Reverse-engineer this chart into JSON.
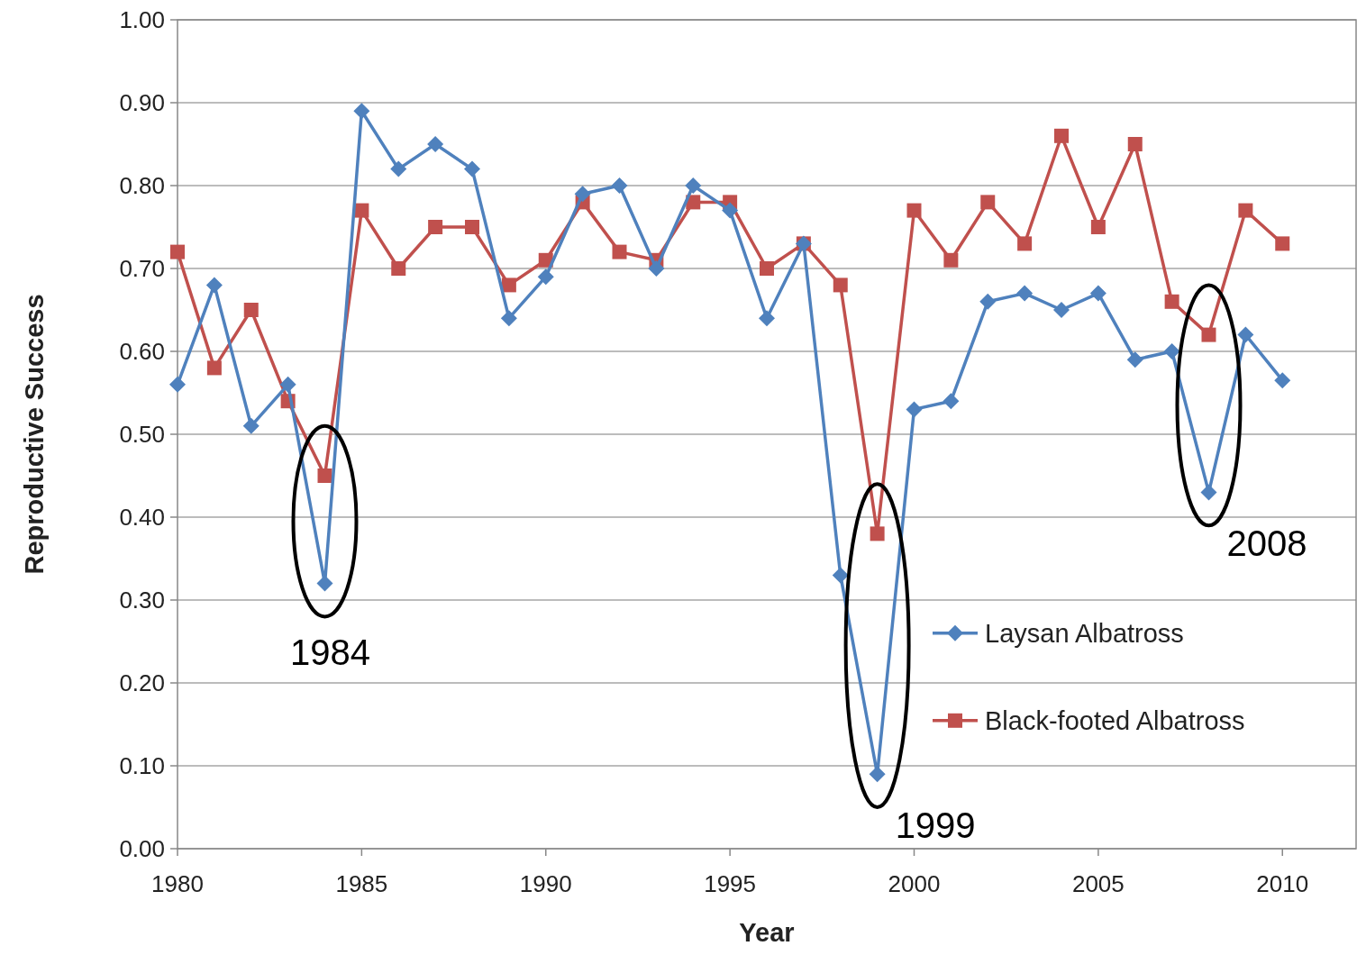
{
  "chart_data": {
    "type": "line",
    "xlabel": "Year",
    "ylabel": "Reproductive Success",
    "x": [
      1980,
      1981,
      1982,
      1983,
      1984,
      1985,
      1986,
      1987,
      1988,
      1989,
      1990,
      1991,
      1992,
      1993,
      1994,
      1995,
      1996,
      1997,
      1998,
      1999,
      2000,
      2001,
      2002,
      2003,
      2004,
      2005,
      2006,
      2007,
      2008,
      2009,
      2010
    ],
    "series": [
      {
        "name": "Laysan Albatross",
        "color": "#4f81bd",
        "marker": "diamond",
        "values": [
          0.56,
          0.68,
          0.51,
          0.56,
          0.32,
          0.89,
          0.82,
          0.85,
          0.82,
          0.64,
          0.69,
          0.79,
          0.8,
          0.7,
          0.8,
          0.77,
          0.64,
          0.73,
          0.33,
          0.09,
          0.53,
          0.54,
          0.66,
          0.67,
          0.65,
          0.67,
          0.59,
          0.6,
          0.43,
          0.62,
          0.565
        ]
      },
      {
        "name": "Black-footed Albatross",
        "color": "#c0504d",
        "marker": "square",
        "values": [
          0.72,
          0.58,
          0.65,
          0.54,
          0.45,
          0.77,
          0.7,
          0.75,
          0.75,
          0.68,
          0.71,
          0.78,
          0.72,
          0.71,
          0.78,
          0.78,
          0.7,
          0.73,
          0.68,
          0.38,
          0.77,
          0.71,
          0.78,
          0.73,
          0.86,
          0.75,
          0.85,
          0.66,
          0.62,
          0.77,
          0.73
        ]
      }
    ],
    "xlim": [
      1980,
      2012
    ],
    "xticks": [
      1980,
      1985,
      1990,
      1995,
      2000,
      2005,
      2010
    ],
    "ylim": [
      0,
      1
    ],
    "yticks": [
      {
        "value": 0,
        "label": "0.00"
      },
      {
        "value": 0.1,
        "label": "0.10"
      },
      {
        "value": 0.2,
        "label": "0.20"
      },
      {
        "value": 0.3,
        "label": "0.30"
      },
      {
        "value": 0.4,
        "label": "0.40"
      },
      {
        "value": 0.5,
        "label": "0.50"
      },
      {
        "value": 0.6,
        "label": "0.60"
      },
      {
        "value": 0.7,
        "label": "0.70"
      },
      {
        "value": 0.8,
        "label": "0.80"
      },
      {
        "value": 0.9,
        "label": "0.90"
      },
      {
        "value": 1,
        "label": "1.00"
      }
    ],
    "grid": "y",
    "legend": "right",
    "line_style": "solid",
    "annotations": [
      {
        "text": "1984",
        "x": 1984,
        "y": 0.32
      },
      {
        "text": "1999",
        "x": 1999,
        "y": 0.09
      },
      {
        "text": "2008",
        "x": 2008,
        "y": 0.43
      }
    ]
  }
}
